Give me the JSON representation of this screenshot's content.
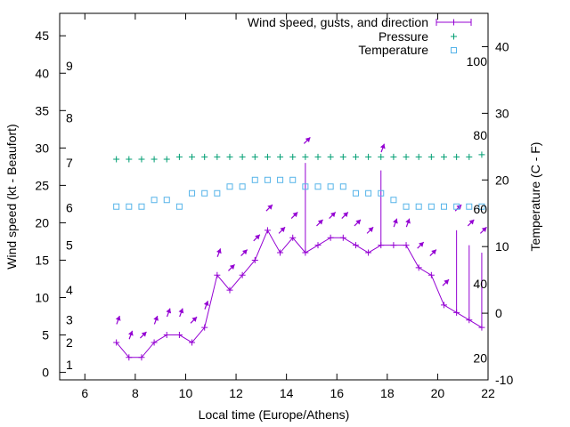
{
  "chart_data": {
    "type": "line",
    "xlabel": "Local time (Europe/Athens)",
    "ylabel": "Wind speed (kt - Beaufort)",
    "y2label": "Temperature (C - F)",
    "xlim": [
      5,
      22
    ],
    "ylim": [
      -1,
      48
    ],
    "y2lim": [
      -10,
      45
    ],
    "x_ticks": [
      6,
      8,
      10,
      12,
      14,
      16,
      18,
      20,
      22
    ],
    "y_ticks": [
      0,
      5,
      10,
      15,
      20,
      25,
      30,
      35,
      40,
      45
    ],
    "y2_ticks": [
      -10,
      0,
      10,
      20,
      30,
      40
    ],
    "beaufort_labels": [
      {
        "label": "1",
        "kt": 1
      },
      {
        "label": "2",
        "kt": 4
      },
      {
        "label": "3",
        "kt": 7
      },
      {
        "label": "4",
        "kt": 11
      },
      {
        "label": "5",
        "kt": 17
      },
      {
        "label": "6",
        "kt": 22
      },
      {
        "label": "7",
        "kt": 28
      },
      {
        "label": "8",
        "kt": 34
      },
      {
        "label": "9",
        "kt": 41
      }
    ],
    "fahrenheit_labels": [
      {
        "label": "20",
        "c": -6.7
      },
      {
        "label": "40",
        "c": 4.4
      },
      {
        "label": "60",
        "c": 15.6
      },
      {
        "label": "80",
        "c": 26.7
      },
      {
        "label": "100",
        "c": 37.8
      }
    ],
    "legend_position": "top-right",
    "series": [
      {
        "name": "Wind speed, gusts, and direction",
        "color": "#9400d3",
        "x": [
          7.25,
          7.75,
          8.25,
          8.75,
          9.25,
          9.75,
          10.25,
          10.75,
          11.25,
          11.75,
          12.25,
          12.75,
          13.25,
          13.75,
          14.25,
          14.75,
          15.25,
          15.75,
          16.25,
          16.75,
          17.25,
          17.75,
          18.25,
          18.75,
          19.25,
          19.75,
          20.25,
          20.75,
          21.25,
          21.75
        ],
        "values": [
          4,
          2,
          2,
          4,
          5,
          5,
          4,
          6,
          13,
          11,
          13,
          15,
          19,
          16,
          18,
          16,
          17,
          18,
          18,
          17,
          16,
          17,
          17,
          17,
          14,
          13,
          9,
          8,
          7,
          6
        ],
        "gusts": [
          null,
          null,
          null,
          null,
          null,
          null,
          null,
          null,
          null,
          null,
          null,
          null,
          null,
          null,
          null,
          28,
          null,
          null,
          null,
          null,
          null,
          27,
          null,
          null,
          null,
          null,
          null,
          19,
          17,
          16
        ],
        "direction_deg": [
          200,
          200,
          225,
          200,
          200,
          200,
          225,
          200,
          200,
          225,
          225,
          225,
          225,
          225,
          225,
          225,
          225,
          225,
          225,
          225,
          225,
          200,
          200,
          200,
          225,
          225,
          225,
          225,
          225,
          225
        ]
      },
      {
        "name": "Pressure",
        "color": "#009e73",
        "x": [
          7.25,
          7.75,
          8.25,
          8.75,
          9.25,
          9.75,
          10.25,
          10.75,
          11.25,
          11.75,
          12.25,
          12.75,
          13.25,
          13.75,
          14.25,
          14.75,
          15.25,
          15.75,
          16.25,
          16.75,
          17.25,
          17.75,
          18.25,
          18.75,
          19.25,
          19.75,
          20.25,
          20.75,
          21.25,
          21.75
        ],
        "values": [
          28.5,
          28.5,
          28.5,
          28.5,
          28.5,
          28.8,
          28.8,
          28.8,
          28.8,
          28.8,
          28.8,
          28.8,
          28.8,
          28.8,
          28.8,
          28.8,
          28.8,
          28.8,
          28.8,
          28.8,
          28.8,
          28.8,
          28.8,
          28.8,
          28.8,
          28.8,
          28.8,
          28.8,
          28.8,
          29.1
        ]
      },
      {
        "name": "Temperature",
        "color": "#56b4e9",
        "x": [
          7.25,
          7.75,
          8.25,
          8.75,
          9.25,
          9.75,
          10.25,
          10.75,
          11.25,
          11.75,
          12.25,
          12.75,
          13.25,
          13.75,
          14.25,
          14.75,
          15.25,
          15.75,
          16.25,
          16.75,
          17.25,
          17.75,
          18.25,
          18.75,
          19.25,
          19.75,
          20.25,
          20.75,
          21.25,
          21.75
        ],
        "values": [
          16,
          16,
          16,
          17,
          17,
          16,
          18,
          18,
          18,
          19,
          19,
          20,
          20,
          20,
          20,
          19,
          19,
          19,
          19,
          18,
          18,
          18,
          17,
          16,
          16,
          16,
          16,
          16,
          16,
          16
        ]
      }
    ]
  }
}
